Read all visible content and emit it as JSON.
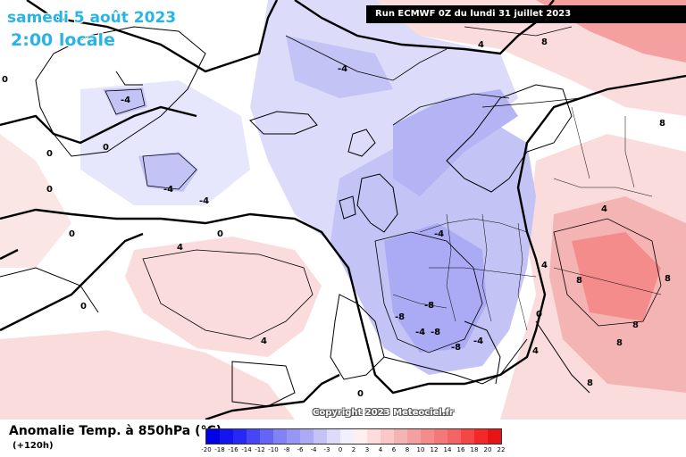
{
  "header": {
    "date": "samedi 5 août 2023",
    "time": "2:00 locale",
    "run": "Run ECMWF 0Z du lundi 31 juillet 2023"
  },
  "credit": "Copyright 2023 Meteociel.fr",
  "legend": {
    "title": "Anomalie Temp. à 850hPa (°C)",
    "lead_time": "(+120h)",
    "scale_ticks": [
      "-20",
      "-18",
      "-16",
      "-14",
      "-12",
      "-10",
      "-8",
      "-6",
      "-4",
      "-3",
      "0",
      "2",
      "3",
      "4",
      "6",
      "8",
      "10",
      "12",
      "14",
      "16",
      "18",
      "20",
      "22"
    ],
    "colors": [
      "#0000e6",
      "#1414f0",
      "#2828f5",
      "#4646f5",
      "#6464f5",
      "#8282f5",
      "#9696f5",
      "#aaaaf5",
      "#c3c3f5",
      "#dcdcfa",
      "#f0f0ff",
      "#fff0f0",
      "#ffdcdc",
      "#fac8c8",
      "#f5b4b4",
      "#f5a0a0",
      "#f58c8c",
      "#f57878",
      "#f56464",
      "#f54646",
      "#f52828",
      "#e61414"
    ]
  },
  "isotherm_labels": [
    "-4",
    "-4",
    "-4",
    "-4",
    "-4",
    "-8",
    "-8",
    "-8",
    "-8",
    "-4",
    "-4",
    "0",
    "0",
    "0",
    "0",
    "0",
    "0",
    "0",
    "4",
    "4",
    "4",
    "4",
    "4",
    "8",
    "8",
    "8",
    "8",
    "8",
    "8",
    "0",
    "0",
    "4",
    "8"
  ]
}
